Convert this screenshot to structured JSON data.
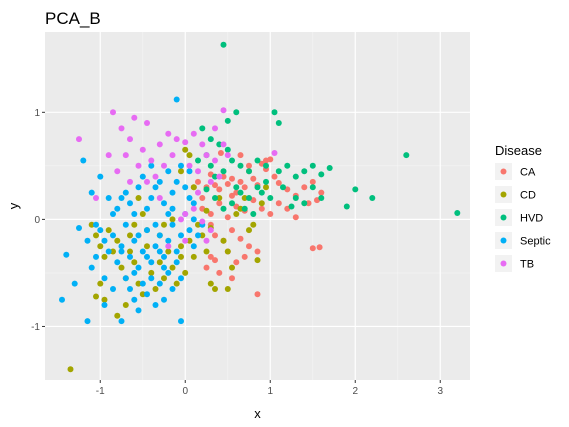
{
  "chart_data": {
    "type": "scatter",
    "title": "PCA_B",
    "xlabel": "x",
    "ylabel": "y",
    "xlim": [
      -1.65,
      3.35
    ],
    "ylim": [
      -1.5,
      1.75
    ],
    "x_ticks": [
      -1,
      0,
      1,
      2,
      3
    ],
    "y_ticks": [
      -1,
      0,
      1
    ],
    "grid": true,
    "legend": {
      "title": "Disease",
      "placement": "right"
    },
    "series": [
      {
        "name": "CA",
        "color": "#F8766D",
        "points": [
          [
            0.15,
            0.35
          ],
          [
            0.25,
            0.3
          ],
          [
            0.3,
            0.42
          ],
          [
            0.35,
            0.32
          ],
          [
            0.4,
            0.28
          ],
          [
            0.45,
            0.4
          ],
          [
            0.5,
            0.33
          ],
          [
            0.55,
            0.38
          ],
          [
            0.6,
            0.25
          ],
          [
            0.65,
            0.35
          ],
          [
            0.7,
            0.3
          ],
          [
            0.75,
            0.45
          ],
          [
            0.8,
            0.38
          ],
          [
            0.85,
            0.32
          ],
          [
            0.9,
            0.52
          ],
          [
            0.95,
            0.47
          ],
          [
            1.0,
            0.56
          ],
          [
            1.05,
            0.4
          ],
          [
            1.1,
            0.34
          ],
          [
            1.2,
            0.28
          ],
          [
            1.3,
            0.22
          ],
          [
            1.4,
            0.3
          ],
          [
            1.5,
            0.35
          ],
          [
            1.6,
            0.25
          ],
          [
            1.55,
            0.18
          ],
          [
            0.2,
            0.1
          ],
          [
            0.3,
            0.05
          ],
          [
            0.4,
            0.15
          ],
          [
            0.5,
            0.02
          ],
          [
            0.6,
            0.12
          ],
          [
            0.7,
            0.08
          ],
          [
            0.8,
            0.18
          ],
          [
            0.9,
            0.1
          ],
          [
            1.0,
            0.05
          ],
          [
            1.1,
            0.15
          ],
          [
            1.2,
            0.1
          ],
          [
            1.3,
            0.02
          ],
          [
            0.35,
            -0.15
          ],
          [
            0.45,
            -0.2
          ],
          [
            0.55,
            -0.1
          ],
          [
            0.65,
            -0.18
          ],
          [
            0.75,
            -0.25
          ],
          [
            0.85,
            -0.3
          ],
          [
            0.3,
            -0.35
          ],
          [
            0.35,
            -0.38
          ],
          [
            0.5,
            -0.3
          ],
          [
            0.6,
            -0.4
          ],
          [
            0.7,
            -0.35
          ],
          [
            0.25,
            -0.45
          ],
          [
            0.4,
            -0.5
          ],
          [
            0.55,
            -0.55
          ],
          [
            0.85,
            -0.7
          ],
          [
            1.5,
            -0.27
          ],
          [
            1.58,
            -0.26
          ],
          [
            0.95,
            0.55
          ],
          [
            0.65,
            0.6
          ],
          [
            0.55,
            0.22
          ],
          [
            0.3,
            -0.05
          ],
          [
            0.1,
            0.3
          ],
          [
            0.75,
            0.5
          ],
          [
            1.45,
            0.15
          ],
          [
            0.42,
            0.62
          ],
          [
            0.2,
            0.2
          ]
        ]
      },
      {
        "name": "CD",
        "color": "#A3A500",
        "points": [
          [
            -1.35,
            -1.4
          ],
          [
            -1.1,
            -0.05
          ],
          [
            -1.05,
            -0.15
          ],
          [
            -1.0,
            -0.25
          ],
          [
            -0.95,
            -0.35
          ],
          [
            -1.0,
            -0.6
          ],
          [
            -0.95,
            -0.75
          ],
          [
            -0.9,
            -0.1
          ],
          [
            -0.85,
            -0.3
          ],
          [
            -0.8,
            -0.2
          ],
          [
            -0.75,
            -0.45
          ],
          [
            -0.7,
            -0.55
          ],
          [
            -0.7,
            -0.8
          ],
          [
            -0.65,
            -0.3
          ],
          [
            -0.6,
            -0.4
          ],
          [
            -0.55,
            -0.6
          ],
          [
            -0.5,
            -0.7
          ],
          [
            -0.45,
            -0.25
          ],
          [
            -0.4,
            -0.5
          ],
          [
            -0.35,
            -0.65
          ],
          [
            -0.3,
            -0.4
          ],
          [
            -0.25,
            -0.55
          ],
          [
            -0.2,
            -0.3
          ],
          [
            -0.15,
            -0.45
          ],
          [
            -0.1,
            -0.6
          ],
          [
            -0.05,
            -0.35
          ],
          [
            0.0,
            -0.5
          ],
          [
            0.05,
            -0.2
          ],
          [
            0.1,
            -0.35
          ],
          [
            0.15,
            -0.05
          ],
          [
            0.2,
            -0.15
          ],
          [
            0.25,
            -0.3
          ],
          [
            0.3,
            -0.6
          ],
          [
            0.35,
            -0.65
          ],
          [
            0.45,
            -0.2
          ],
          [
            0.5,
            -0.3
          ],
          [
            0.5,
            -0.65
          ],
          [
            0.55,
            -0.45
          ],
          [
            0.6,
            0.05
          ],
          [
            0.65,
            0.1
          ],
          [
            0.7,
            0.2
          ],
          [
            0.75,
            -0.1
          ],
          [
            0.8,
            -0.05
          ],
          [
            0.85,
            -0.38
          ],
          [
            0.9,
            0.15
          ],
          [
            0.95,
            0.3
          ],
          [
            0.1,
            0.3
          ],
          [
            0.05,
            0.6
          ],
          [
            0.0,
            0.65
          ],
          [
            -0.05,
            0.45
          ],
          [
            -0.55,
            0.2
          ],
          [
            -0.5,
            0.05
          ],
          [
            -0.6,
            -0.05
          ],
          [
            -0.65,
            -0.15
          ],
          [
            -0.8,
            -0.9
          ],
          [
            -1.05,
            -0.72
          ],
          [
            -0.3,
            -0.15
          ],
          [
            0.4,
            0.2
          ],
          [
            0.25,
            0.08
          ],
          [
            -0.15,
            0.0
          ],
          [
            -0.25,
            -0.05
          ],
          [
            -0.45,
            -0.1
          ],
          [
            -0.05,
            -0.25
          ],
          [
            0.3,
            -0.08
          ]
        ]
      },
      {
        "name": "HVD",
        "color": "#00BF7D",
        "points": [
          [
            0.45,
            1.63
          ],
          [
            0.6,
            1.0
          ],
          [
            0.5,
            0.92
          ],
          [
            1.05,
            1.0
          ],
          [
            1.1,
            0.9
          ],
          [
            0.2,
            0.85
          ],
          [
            0.3,
            0.75
          ],
          [
            0.4,
            0.7
          ],
          [
            0.5,
            0.65
          ],
          [
            0.25,
            0.6
          ],
          [
            0.15,
            0.55
          ],
          [
            0.3,
            0.5
          ],
          [
            0.45,
            0.45
          ],
          [
            0.55,
            0.55
          ],
          [
            0.65,
            0.5
          ],
          [
            0.75,
            0.45
          ],
          [
            0.85,
            0.55
          ],
          [
            0.95,
            0.5
          ],
          [
            1.1,
            0.45
          ],
          [
            1.2,
            0.5
          ],
          [
            1.3,
            0.4
          ],
          [
            1.4,
            0.45
          ],
          [
            1.5,
            0.5
          ],
          [
            1.6,
            0.42
          ],
          [
            1.7,
            0.48
          ],
          [
            1.5,
            0.3
          ],
          [
            1.6,
            0.2
          ],
          [
            1.3,
            0.2
          ],
          [
            1.4,
            0.15
          ],
          [
            1.15,
            0.3
          ],
          [
            0.95,
            0.35
          ],
          [
            0.85,
            0.3
          ],
          [
            0.75,
            0.2
          ],
          [
            0.65,
            0.25
          ],
          [
            0.55,
            0.15
          ],
          [
            0.45,
            0.1
          ],
          [
            0.35,
            0.2
          ],
          [
            0.25,
            0.28
          ],
          [
            1.9,
            0.12
          ],
          [
            2.0,
            0.28
          ],
          [
            2.2,
            0.2
          ],
          [
            2.6,
            0.6
          ],
          [
            3.2,
            0.06
          ],
          [
            0.8,
            0.05
          ],
          [
            0.7,
            0.1
          ],
          [
            1.0,
            0.2
          ],
          [
            0.6,
            0.3
          ],
          [
            0.9,
            0.25
          ],
          [
            0.35,
            0.4
          ],
          [
            1.25,
            0.12
          ]
        ]
      },
      {
        "name": "Septic",
        "color": "#00B0F6",
        "points": [
          [
            -1.45,
            -0.75
          ],
          [
            -1.4,
            -0.33
          ],
          [
            -1.25,
            -0.08
          ],
          [
            -1.15,
            -0.2
          ],
          [
            -1.1,
            -0.45
          ],
          [
            -1.05,
            -0.05
          ],
          [
            -1.0,
            -0.1
          ],
          [
            -0.95,
            -0.2
          ],
          [
            -0.9,
            -0.3
          ],
          [
            -0.85,
            -0.15
          ],
          [
            -0.8,
            -0.4
          ],
          [
            -0.75,
            -0.25
          ],
          [
            -0.7,
            -0.05
          ],
          [
            -0.65,
            -0.35
          ],
          [
            -0.6,
            -0.2
          ],
          [
            -0.55,
            -0.45
          ],
          [
            -0.5,
            -0.3
          ],
          [
            -0.45,
            -0.1
          ],
          [
            -0.4,
            -0.4
          ],
          [
            -0.35,
            -0.25
          ],
          [
            -0.3,
            -0.15
          ],
          [
            -0.25,
            -0.35
          ],
          [
            -0.2,
            -0.2
          ],
          [
            -0.15,
            -0.05
          ],
          [
            -0.1,
            -0.3
          ],
          [
            -0.05,
            -0.15
          ],
          [
            0.0,
            0.05
          ],
          [
            0.05,
            -0.1
          ],
          [
            0.1,
            -0.25
          ],
          [
            0.15,
            -0.15
          ],
          [
            -0.8,
            0.1
          ],
          [
            -0.75,
            0.2
          ],
          [
            -0.7,
            0.25
          ],
          [
            -0.65,
            0.15
          ],
          [
            -0.6,
            0.05
          ],
          [
            -0.55,
            0.3
          ],
          [
            -0.5,
            0.4
          ],
          [
            -0.45,
            0.1
          ],
          [
            -0.4,
            0.2
          ],
          [
            -0.35,
            0.3
          ],
          [
            -0.3,
            0.35
          ],
          [
            -0.25,
            0.15
          ],
          [
            -0.2,
            0.45
          ],
          [
            -0.15,
            0.25
          ],
          [
            -0.1,
            0.35
          ],
          [
            -0.05,
            0.5
          ],
          [
            0.0,
            0.3
          ],
          [
            0.05,
            0.2
          ],
          [
            -0.1,
            1.12
          ],
          [
            -1.2,
            0.55
          ],
          [
            -1.1,
            0.25
          ],
          [
            -1.0,
            0.4
          ],
          [
            -0.9,
            0.2
          ],
          [
            -0.85,
            0.05
          ],
          [
            -0.7,
            -0.55
          ],
          [
            -0.65,
            -0.65
          ],
          [
            -0.6,
            -0.75
          ],
          [
            -0.5,
            -0.6
          ],
          [
            -0.45,
            -0.7
          ],
          [
            -0.4,
            -0.55
          ],
          [
            -0.35,
            -0.8
          ],
          [
            -0.3,
            -0.6
          ],
          [
            -0.25,
            -0.75
          ],
          [
            -0.2,
            -0.5
          ],
          [
            -0.15,
            -0.65
          ],
          [
            -0.1,
            -0.4
          ],
          [
            -0.05,
            -0.55
          ],
          [
            -0.05,
            -0.95
          ],
          [
            -0.75,
            -0.95
          ],
          [
            -1.15,
            -0.95
          ],
          [
            -0.95,
            -0.55
          ],
          [
            -1.05,
            -0.35
          ],
          [
            -0.85,
            -0.65
          ],
          [
            -0.55,
            -0.15
          ],
          [
            -0.35,
            -0.05
          ],
          [
            -0.15,
            0.1
          ],
          [
            0.1,
            0.0
          ],
          [
            0.2,
            -0.05
          ],
          [
            -0.75,
            -0.3
          ],
          [
            -0.45,
            -0.35
          ],
          [
            -0.25,
            -0.45
          ],
          [
            -0.6,
            -0.5
          ],
          [
            -0.2,
            0.05
          ],
          [
            -1.3,
            -0.6
          ],
          [
            0.05,
            0.45
          ],
          [
            -0.4,
            0.5
          ],
          [
            0.1,
            0.15
          ],
          [
            -0.95,
            -0.8
          ],
          [
            -0.55,
            -0.85
          ],
          [
            -0.3,
            -0.3
          ]
        ]
      },
      {
        "name": "TB",
        "color": "#E76BF3",
        "points": [
          [
            -0.85,
            1.0
          ],
          [
            -0.6,
            0.95
          ],
          [
            -0.45,
            0.9
          ],
          [
            -1.25,
            0.75
          ],
          [
            -0.75,
            0.85
          ],
          [
            -0.65,
            0.75
          ],
          [
            -0.5,
            0.65
          ],
          [
            -0.4,
            0.55
          ],
          [
            -0.3,
            0.7
          ],
          [
            -0.2,
            0.8
          ],
          [
            -0.1,
            0.75
          ],
          [
            0.0,
            0.72
          ],
          [
            0.1,
            0.8
          ],
          [
            0.2,
            0.7
          ],
          [
            0.25,
            0.6
          ],
          [
            0.35,
            0.55
          ],
          [
            0.45,
            0.7
          ],
          [
            0.5,
            0.6
          ],
          [
            0.45,
            1.02
          ],
          [
            -0.9,
            0.6
          ],
          [
            -0.8,
            0.45
          ],
          [
            -0.55,
            0.5
          ],
          [
            -0.45,
            0.35
          ],
          [
            -0.35,
            0.4
          ],
          [
            -0.25,
            0.5
          ],
          [
            -0.15,
            0.6
          ],
          [
            0.05,
            0.5
          ],
          [
            0.15,
            0.45
          ],
          [
            0.3,
            0.35
          ],
          [
            0.4,
            0.4
          ],
          [
            1.05,
            0.62
          ],
          [
            0.0,
            0.05
          ],
          [
            0.1,
            0.1
          ],
          [
            0.2,
            -0.02
          ],
          [
            0.3,
            -0.1
          ],
          [
            0.0,
            -0.2
          ],
          [
            -0.2,
            -0.25
          ],
          [
            -0.05,
            0.0
          ],
          [
            -0.65,
            0.35
          ],
          [
            -1.05,
            0.2
          ],
          [
            -0.7,
            0.6
          ],
          [
            0.35,
            0.85
          ],
          [
            0.15,
            0.25
          ],
          [
            -0.3,
            0.2
          ],
          [
            0.25,
            -0.2
          ]
        ]
      }
    ]
  }
}
